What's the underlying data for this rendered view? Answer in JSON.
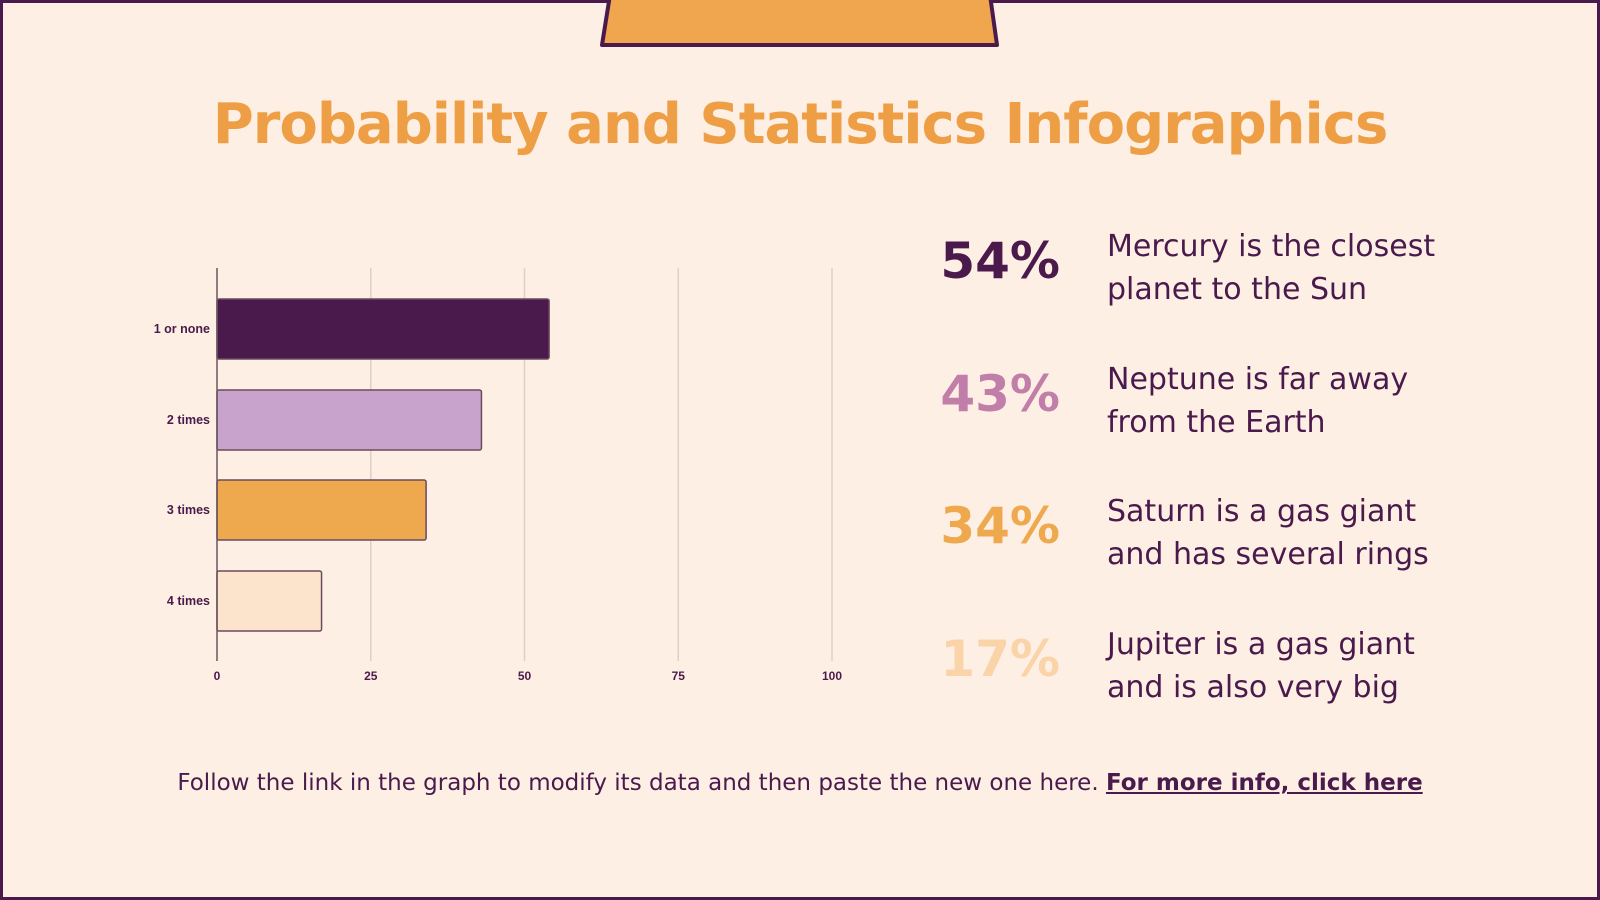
{
  "title": "Probability and Statistics Infographics",
  "colors": {
    "background": "#fdefe3",
    "dark_purple": "#4a1a4c",
    "mauve": "#c48db6",
    "orange": "#eea84e",
    "peach": "#fce4cc",
    "title": "#ee9f45"
  },
  "chart_data": {
    "type": "bar",
    "orientation": "horizontal",
    "categories": [
      "1 or none",
      "2 times",
      "3 times",
      "4 times"
    ],
    "values": [
      54,
      43,
      34,
      17
    ],
    "bar_colors": [
      "#4a1a4c",
      "#c8a4cc",
      "#eea84e",
      "#fce4cc"
    ],
    "xlim": [
      0,
      100
    ],
    "xticks": [
      "0",
      "25",
      "50",
      "75",
      "100"
    ],
    "grid": "vertical",
    "title": "",
    "xlabel": "",
    "ylabel": ""
  },
  "stats": [
    {
      "value": "54%",
      "color": "#4a1a4c",
      "text": [
        "Mercury is the closest",
        "planet to the Sun"
      ]
    },
    {
      "value": "43%",
      "color": "#c07ea8",
      "text": [
        "Neptune is far away",
        "from the Earth"
      ]
    },
    {
      "value": "34%",
      "color": "#eea84e",
      "text": [
        "Saturn is a gas giant",
        "and has several rings"
      ]
    },
    {
      "value": "17%",
      "color": "#fbd3a8",
      "text": [
        "Jupiter is a gas giant",
        "and is also very big"
      ]
    }
  ],
  "footer": {
    "text": "Follow the link in the graph to modify its data and then paste the new one here. ",
    "link": "For more info, click here"
  }
}
